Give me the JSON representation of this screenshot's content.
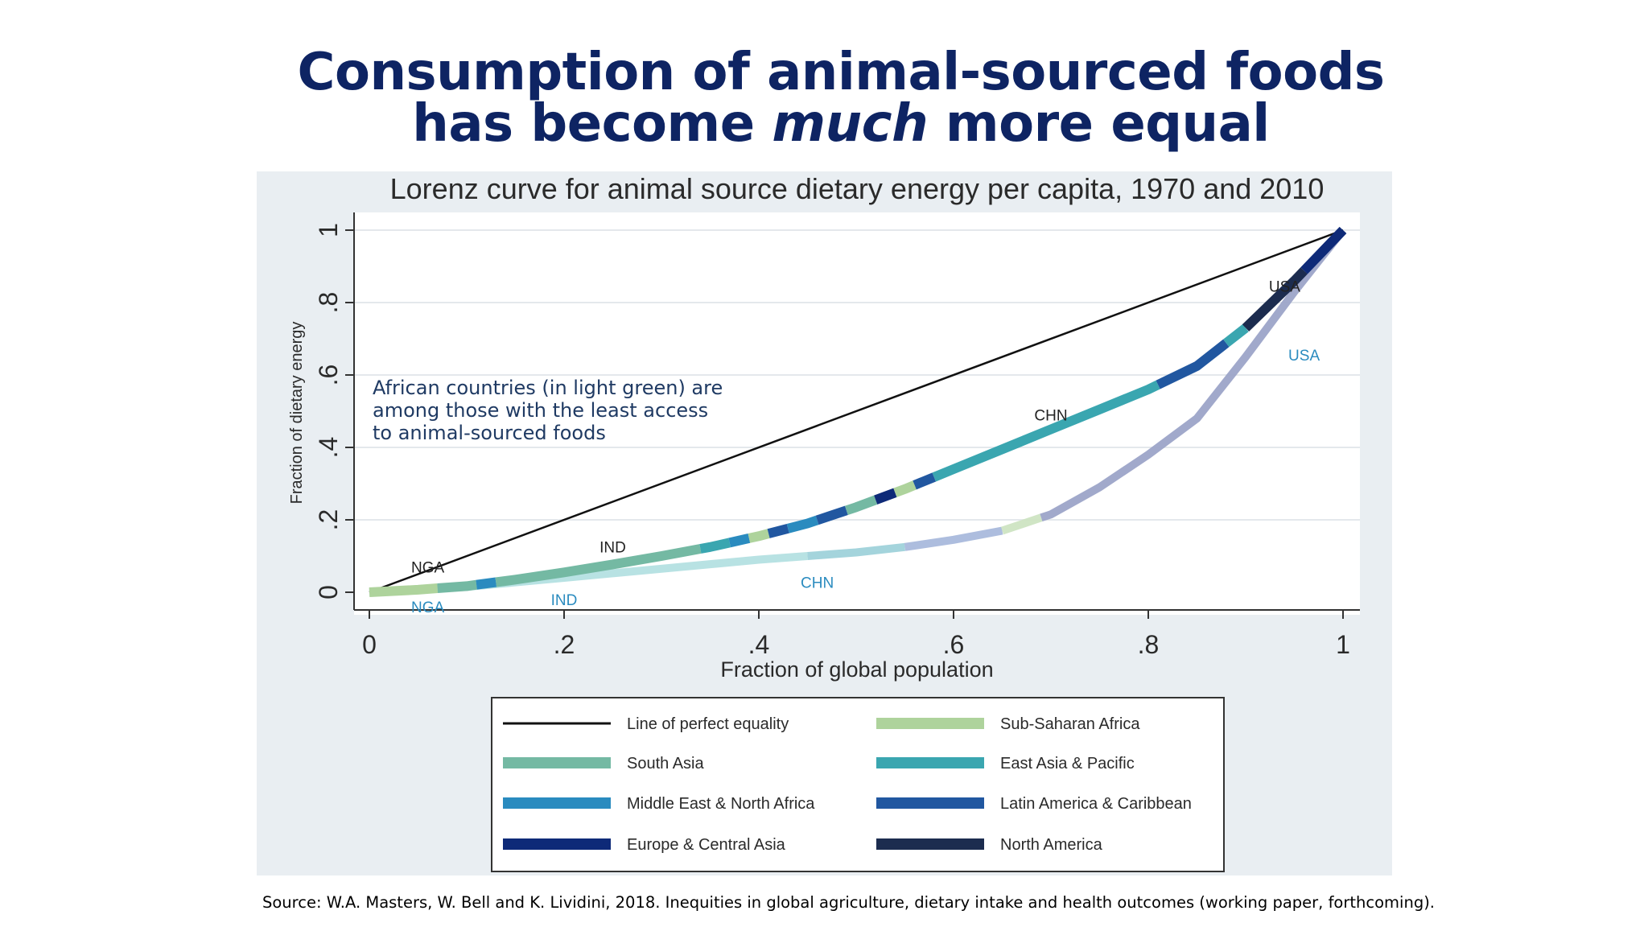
{
  "slide": {
    "title_line1": "Consumption of animal-sourced foods",
    "title_line2_pre": "has become ",
    "title_line2_em": "much",
    "title_line2_post": " more equal",
    "annotation_lines": [
      "African countries (in light green) are",
      "among those with the least access",
      "to animal-sourced foods"
    ],
    "source": "Source:  W.A. Masters, W. Bell and K. Lividini, 2018. Inequities in global agriculture, dietary intake and health outcomes (working paper, forthcoming)."
  },
  "colors": {
    "title": "#0e2463",
    "panel_bg": "#e9eef2",
    "plot_bg": "#ffffff",
    "equality_line": "#111111",
    "region_sub_saharan_africa": "#aed39c",
    "region_south_asia": "#74b9a3",
    "region_east_asia_pacific": "#3aa6b0",
    "region_mena": "#2a8bbf",
    "region_latin_america": "#2157a0",
    "region_europe_central_asia": "#0e2a78",
    "region_north_america": "#1c2c4f"
  },
  "chart_data": {
    "type": "line",
    "title": "Lorenz curve for animal source dietary energy per capita, 1970 and 2010",
    "xlabel": "Fraction of global population",
    "ylabel": "Fraction of dietary energy",
    "xlim": [
      0,
      1
    ],
    "ylim": [
      0,
      1
    ],
    "xticks": [
      {
        "value": 0,
        "label": "0"
      },
      {
        "value": 0.2,
        "label": ".2"
      },
      {
        "value": 0.4,
        "label": ".4"
      },
      {
        "value": 0.6,
        "label": ".6"
      },
      {
        "value": 0.8,
        "label": ".8"
      },
      {
        "value": 1,
        "label": "1"
      }
    ],
    "yticks": [
      {
        "value": 0,
        "label": "0"
      },
      {
        "value": 0.2,
        "label": ".2"
      },
      {
        "value": 0.4,
        "label": ".4"
      },
      {
        "value": 0.6,
        "label": ".6"
      },
      {
        "value": 0.8,
        "label": ".8"
      },
      {
        "value": 1,
        "label": "1"
      }
    ],
    "grid": true,
    "legend_position": "bottom",
    "legend": [
      {
        "label": "Line of perfect equality",
        "color": "#111111",
        "kind": "line"
      },
      {
        "label": "Sub-Saharan Africa",
        "color": "#aed39c",
        "kind": "band"
      },
      {
        "label": "South Asia",
        "color": "#74b9a3",
        "kind": "band"
      },
      {
        "label": "East Asia & Pacific",
        "color": "#3aa6b0",
        "kind": "band"
      },
      {
        "label": "Middle East & North Africa",
        "color": "#2a8bbf",
        "kind": "band"
      },
      {
        "label": "Latin America & Caribbean",
        "color": "#2157a0",
        "kind": "band"
      },
      {
        "label": "Europe & Central Asia",
        "color": "#0e2a78",
        "kind": "band"
      },
      {
        "label": "North America",
        "color": "#1c2c4f",
        "kind": "band"
      }
    ],
    "series": [
      {
        "key": "equality",
        "x": [
          0,
          1
        ],
        "y": [
          0,
          1
        ],
        "color": "#111111"
      },
      {
        "key": "2010",
        "x": [
          0,
          0.05,
          0.1,
          0.15,
          0.2,
          0.25,
          0.3,
          0.35,
          0.4,
          0.45,
          0.5,
          0.55,
          0.6,
          0.65,
          0.7,
          0.75,
          0.8,
          0.85,
          0.9,
          0.95,
          1.0
        ],
        "y": [
          0,
          0.007,
          0.017,
          0.035,
          0.055,
          0.077,
          0.1,
          0.125,
          0.155,
          0.19,
          0.235,
          0.285,
          0.34,
          0.395,
          0.45,
          0.505,
          0.56,
          0.625,
          0.73,
          0.86,
          1.0
        ],
        "segments": [
          {
            "from": 0.0,
            "to": 0.07,
            "region": "region_sub_saharan_africa"
          },
          {
            "from": 0.07,
            "to": 0.11,
            "region": "region_south_asia"
          },
          {
            "from": 0.11,
            "to": 0.13,
            "region": "region_mena"
          },
          {
            "from": 0.13,
            "to": 0.34,
            "region": "region_south_asia"
          },
          {
            "from": 0.34,
            "to": 0.37,
            "region": "region_east_asia_pacific"
          },
          {
            "from": 0.37,
            "to": 0.39,
            "region": "region_mena"
          },
          {
            "from": 0.39,
            "to": 0.41,
            "region": "region_sub_saharan_africa"
          },
          {
            "from": 0.41,
            "to": 0.43,
            "region": "region_latin_america"
          },
          {
            "from": 0.43,
            "to": 0.46,
            "region": "region_mena"
          },
          {
            "from": 0.46,
            "to": 0.49,
            "region": "region_latin_america"
          },
          {
            "from": 0.49,
            "to": 0.52,
            "region": "region_south_asia"
          },
          {
            "from": 0.52,
            "to": 0.54,
            "region": "region_europe_central_asia"
          },
          {
            "from": 0.54,
            "to": 0.56,
            "region": "region_sub_saharan_africa"
          },
          {
            "from": 0.56,
            "to": 0.58,
            "region": "region_latin_america"
          },
          {
            "from": 0.58,
            "to": 0.81,
            "region": "region_east_asia_pacific"
          },
          {
            "from": 0.81,
            "to": 0.88,
            "region": "region_latin_america"
          },
          {
            "from": 0.88,
            "to": 0.9,
            "region": "region_east_asia_pacific"
          },
          {
            "from": 0.9,
            "to": 0.96,
            "region": "region_north_america"
          },
          {
            "from": 0.96,
            "to": 1.0,
            "region": "region_europe_central_asia"
          }
        ],
        "labels": [
          {
            "text": "NGA",
            "x": 0.06,
            "y": 0.055,
            "color": "#222222"
          },
          {
            "text": "IND",
            "x": 0.25,
            "y": 0.11,
            "color": "#222222"
          },
          {
            "text": "CHN",
            "x": 0.7,
            "y": 0.475,
            "color": "#222222"
          },
          {
            "text": "USA",
            "x": 0.94,
            "y": 0.83,
            "color": "#222222"
          }
        ]
      },
      {
        "key": "1970",
        "x": [
          0,
          0.1,
          0.2,
          0.3,
          0.4,
          0.5,
          0.55,
          0.6,
          0.65,
          0.7,
          0.75,
          0.8,
          0.85,
          0.9,
          0.95,
          1.0
        ],
        "y": [
          0,
          0.015,
          0.04,
          0.065,
          0.09,
          0.11,
          0.125,
          0.145,
          0.17,
          0.215,
          0.29,
          0.38,
          0.48,
          0.65,
          0.83,
          1.0
        ],
        "segments": [
          {
            "from": 0.0,
            "to": 0.45,
            "color": "#b4e0e2"
          },
          {
            "from": 0.45,
            "to": 0.55,
            "color": "#9fd2da"
          },
          {
            "from": 0.55,
            "to": 0.65,
            "color": "#a9b9dc"
          },
          {
            "from": 0.65,
            "to": 0.69,
            "color": "#cde4c2"
          },
          {
            "from": 0.69,
            "to": 1.0,
            "color": "#9ca4c8"
          }
        ],
        "labels": [
          {
            "text": "NGA",
            "x": 0.06,
            "y": -0.055,
            "color": "#2a8bbf"
          },
          {
            "text": "IND",
            "x": 0.2,
            "y": -0.035,
            "color": "#2a8bbf"
          },
          {
            "text": "CHN",
            "x": 0.46,
            "y": 0.012,
            "color": "#2a8bbf"
          },
          {
            "text": "USA",
            "x": 0.96,
            "y": 0.64,
            "color": "#2a8bbf"
          }
        ]
      }
    ]
  }
}
